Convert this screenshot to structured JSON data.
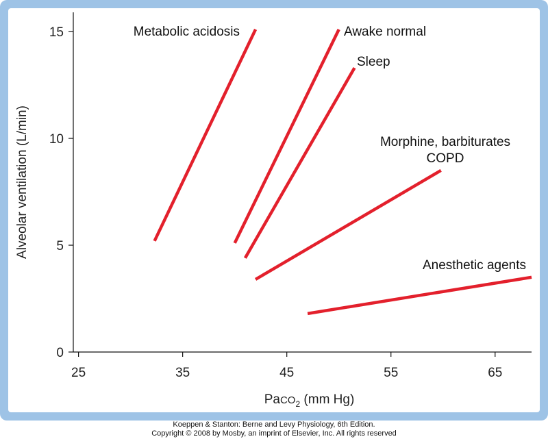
{
  "chart_data": {
    "type": "line",
    "title": "",
    "xlabel": {
      "base": "Pa",
      "co": "CO",
      "sub": "2",
      "unit": " (mm Hg)"
    },
    "ylabel": "Alveolar ventilation (L/min)",
    "xlim": [
      24.5,
      68.5
    ],
    "ylim": [
      0,
      15.9
    ],
    "xticks": [
      25,
      35,
      45,
      55,
      65
    ],
    "yticks": [
      0,
      5,
      10,
      15
    ],
    "grid": false,
    "line_color": "#e3202c",
    "series": [
      {
        "name": "Metabolic acidosis",
        "points": [
          [
            32.3,
            5.2
          ],
          [
            42.0,
            15.1
          ]
        ]
      },
      {
        "name": "Awake normal",
        "points": [
          [
            40.0,
            5.1
          ],
          [
            50.0,
            15.1
          ]
        ]
      },
      {
        "name": "Sleep",
        "points": [
          [
            41.0,
            4.4
          ],
          [
            51.5,
            13.3
          ]
        ]
      },
      {
        "name": "Morphine, barbiturates COPD",
        "lines": [
          "Morphine, barbiturates",
          "COPD"
        ],
        "points": [
          [
            42.0,
            3.4
          ],
          [
            59.8,
            8.5
          ]
        ]
      },
      {
        "name": "Anesthetic agents",
        "points": [
          [
            47.0,
            1.8
          ],
          [
            68.5,
            3.5
          ]
        ]
      }
    ]
  },
  "credit": {
    "line1": "Koeppen & Stanton: Berne and Levy Physiology, 6th Edition.",
    "line2": "Copyright © 2008 by Mosby, an imprint of Elsevier, Inc. All rights reserved"
  }
}
